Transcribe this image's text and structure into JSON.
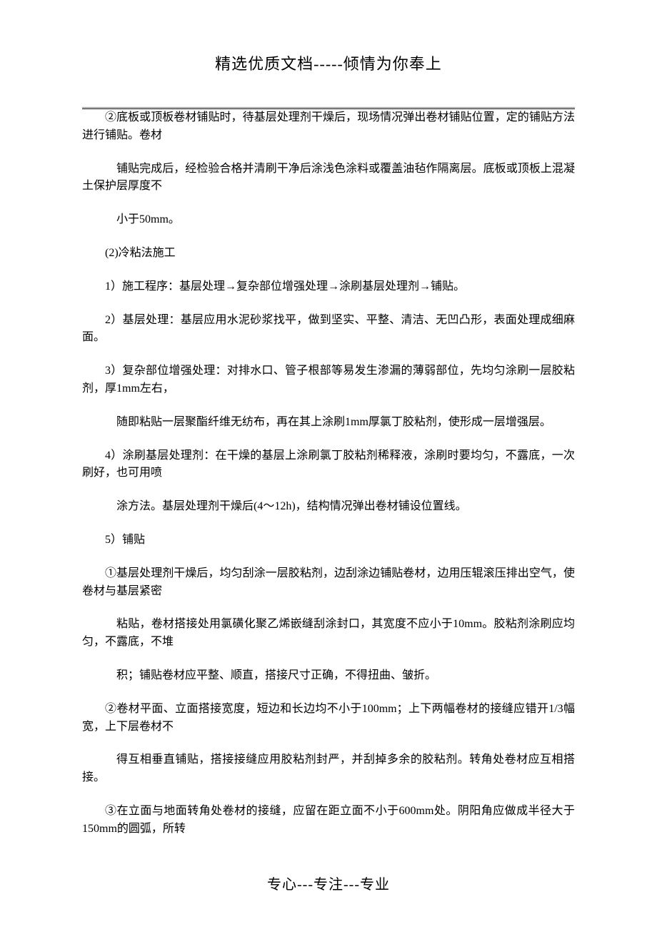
{
  "header": "精选优质文档-----倾情为你奉上",
  "footer": "专心---专注---专业",
  "paragraphs": {
    "p1": "②底板或顶板卷材铺贴时，待基层处理剂干燥后，现场情况弹出卷材铺贴位置，定的铺贴方法进行铺贴。卷材",
    "p2": "铺贴完成后，经检验合格并清刷干净后涂浅色涂料或覆盖油毡作隔离层。底板或顶板上混凝土保护层厚度不",
    "p3": "小于50mm。",
    "p4": "(2)冷粘法施工",
    "p5": "1）施工程序：基层处理→复杂部位增强处理→涂刷基层处理剂→铺贴。",
    "p6": "2）基层处理：基层应用水泥砂浆找平，做到坚实、平整、清洁、无凹凸形，表面处理成细麻面。",
    "p7": "3）复杂部位增强处理：对排水口、管子根部等易发生渗漏的薄弱部位，先均匀涂刷一层胶粘剂，厚1mm左右，",
    "p8": "随即粘贴一层聚酯纤维无纺布，再在其上涂刷1mm厚氯丁胶粘剂，使形成一层增强层。",
    "p9": "4）涂刷基层处理剂：在干燥的基层上涂刷氯丁胶粘剂稀释液，涂刷时要均匀，不露底，一次刷好，也可用喷",
    "p10": "涂方法。基层处理剂干燥后(4～12h)，结构情况弹出卷材铺设位置线。",
    "p11": "5）铺贴",
    "p12": "①基层处理剂干燥后，均匀刮涂一层胶粘剂，边刮涂边铺贴卷材，边用压辊滚压排出空气，使卷材与基层紧密",
    "p13": "粘贴，卷材搭接处用氯磺化聚乙烯嵌缝刮涂封口，其宽度不应小于10mm。胶粘剂涂刷应均匀，不露底，不堆",
    "p14": "积；铺贴卷材应平整、顺直，搭接尺寸正确，不得扭曲、皱折。",
    "p15": "②卷材平面、立面搭接宽度，短边和长边均不小于100mm；上下两幅卷材的接缝应错开1/3幅宽，上下层卷材不",
    "p16": "得互相垂直铺贴，搭接接缝应用胶粘剂封严，并刮掉多余的胶粘剂。转角处卷材应互相搭接。",
    "p17": "③在立面与地面转角处卷材的接缝，应留在距立面不小于600mm处。阴阳角应做成半径大于150mm的圆弧，所转"
  }
}
